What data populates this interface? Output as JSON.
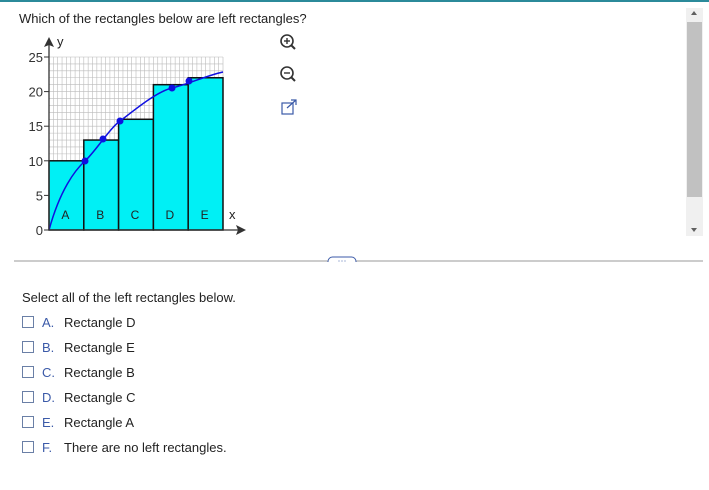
{
  "question": "Which of the rectangles below are left rectangles?",
  "graph": {
    "y_label": "y",
    "x_label": "x",
    "ylim": [
      0,
      25
    ],
    "yticks": [
      0,
      5,
      10,
      15,
      20,
      25
    ],
    "rectangles": [
      {
        "label": "A",
        "height": 10
      },
      {
        "label": "B",
        "height": 13
      },
      {
        "label": "C",
        "height": 16
      },
      {
        "label": "D",
        "height": 21
      },
      {
        "label": "E",
        "height": 22
      }
    ]
  },
  "prompt": "Select all of the left rectangles below.",
  "options": [
    {
      "letter": "A.",
      "text": "Rectangle D"
    },
    {
      "letter": "B.",
      "text": "Rectangle E"
    },
    {
      "letter": "C.",
      "text": "Rectangle B"
    },
    {
      "letter": "D.",
      "text": "Rectangle C"
    },
    {
      "letter": "E.",
      "text": "Rectangle A"
    },
    {
      "letter": "F.",
      "text": "There are no left rectangles."
    }
  ]
}
